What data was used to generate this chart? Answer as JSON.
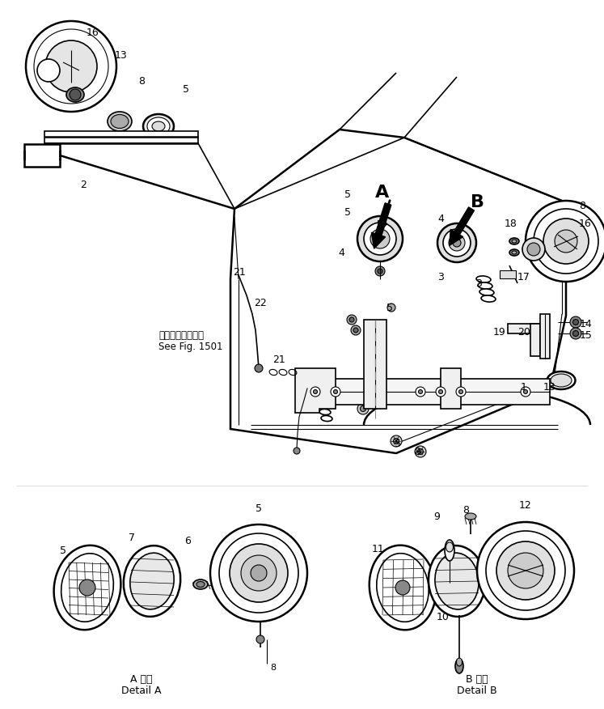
{
  "background_color": "#ffffff",
  "line_color": "#000000",
  "fig_width": 7.47,
  "fig_height": 8.76,
  "dpi": 100,
  "labels": {
    "detail_a_jp": "A 詳細",
    "detail_a_en": "Detail A",
    "detail_b_jp": "B 詳細",
    "detail_b_en": "Detail B",
    "see_fig_jp": "第１５０１図参照",
    "see_fig_en": "See Fig. 1501"
  }
}
